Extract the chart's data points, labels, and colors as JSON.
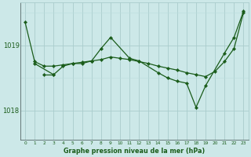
{
  "background_color": "#cce8e8",
  "grid_color_major": "#aacccc",
  "grid_color_minor": "#bbdddd",
  "line_color": "#1a5c1a",
  "marker_color": "#1a5c1a",
  "title": "Graphe pression niveau de la mer (hPa)",
  "xlim": [
    -0.5,
    23.5
  ],
  "ylim": [
    1017.55,
    1019.65
  ],
  "yticks": [
    1018,
    1019
  ],
  "xticks": [
    0,
    1,
    2,
    3,
    4,
    5,
    6,
    7,
    8,
    9,
    10,
    11,
    12,
    13,
    14,
    15,
    16,
    17,
    18,
    19,
    20,
    21,
    22,
    23
  ],
  "series": [
    {
      "x": [
        0,
        1,
        2,
        3,
        4,
        5,
        6,
        7,
        8,
        9,
        10,
        11,
        12,
        13,
        14,
        15,
        16,
        17,
        18,
        19,
        20,
        21,
        22,
        23
      ],
      "y": [
        1019.35,
        1018.75,
        1018.68,
        1018.68,
        1018.7,
        1018.72,
        1018.74,
        1018.76,
        1018.78,
        1018.82,
        1018.8,
        1018.78,
        1018.75,
        1018.72,
        1018.68,
        1018.65,
        1018.62,
        1018.58,
        1018.55,
        1018.52,
        1018.6,
        1018.75,
        1018.95,
        1019.5
      ]
    },
    {
      "x": [
        1,
        3,
        4,
        5,
        6,
        7,
        8,
        9,
        11,
        12,
        14,
        15,
        16,
        17,
        18,
        19,
        21,
        22,
        23
      ],
      "y": [
        1018.72,
        1018.55,
        1018.68,
        1018.72,
        1018.72,
        1018.76,
        1018.95,
        1019.12,
        1018.8,
        1018.76,
        1018.58,
        1018.5,
        1018.45,
        1018.42,
        1018.05,
        1018.38,
        1018.88,
        1019.12,
        1019.52
      ]
    },
    {
      "x": [
        2,
        3
      ],
      "y": [
        1018.55,
        1018.55
      ]
    }
  ]
}
